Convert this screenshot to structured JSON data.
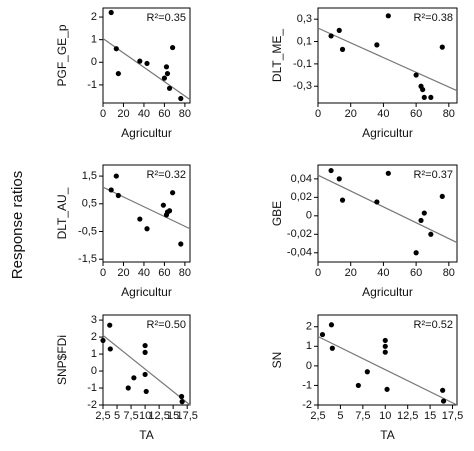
{
  "ylabel": "Response ratios",
  "chart_data": [
    {
      "type": "scatter",
      "xlabel": "Agricultur",
      "ylabel": "PGF_GE_p",
      "annotation": "R²=0.35",
      "x": [
        8,
        13,
        15,
        36,
        43,
        60,
        62,
        63,
        65,
        68,
        76
      ],
      "values": [
        2.2,
        0.6,
        -0.5,
        0.05,
        -0.05,
        -0.7,
        -0.2,
        -0.5,
        -1.15,
        0.65,
        -1.6
      ],
      "fit": {
        "x": [
          0,
          85
        ],
        "y": [
          1.05,
          -1.65
        ]
      },
      "xlim": [
        0,
        85
      ],
      "xticks": [
        0,
        20,
        40,
        60,
        80
      ],
      "ylim": [
        -1.8,
        2.4
      ],
      "yticks": [
        -1,
        0,
        1,
        2
      ],
      "color": "#000000",
      "line_color": "#777777"
    },
    {
      "type": "scatter",
      "xlabel": "Agricultur",
      "ylabel": "DLT_ME_",
      "annotation": "R²=0.38",
      "x": [
        8,
        13,
        15,
        36,
        43,
        60,
        63,
        64,
        65,
        69,
        76
      ],
      "values": [
        0.15,
        0.2,
        0.03,
        0.07,
        0.33,
        -0.2,
        -0.3,
        -0.33,
        -0.4,
        -0.4,
        0.05
      ],
      "fit": {
        "x": [
          0,
          85
        ],
        "y": [
          0.22,
          -0.34
        ]
      },
      "xlim": [
        0,
        85
      ],
      "xticks": [
        0,
        20,
        40,
        60,
        80
      ],
      "ylim": [
        -0.45,
        0.4
      ],
      "yticks": [
        {
          "value": -0.3,
          "label": "-0,3"
        },
        {
          "value": -0.1,
          "label": "-0,1"
        },
        {
          "value": 0.1,
          "label": "0,1"
        },
        {
          "value": 0.3,
          "label": "0,3"
        }
      ],
      "color": "#000000",
      "line_color": "#777777"
    },
    {
      "type": "scatter",
      "xlabel": "Agricultur",
      "ylabel": "DLT_AU_",
      "annotation": "R²=0.32",
      "x": [
        8,
        13,
        15,
        36,
        43,
        59,
        62,
        63,
        65,
        68,
        76
      ],
      "values": [
        1.0,
        1.5,
        0.8,
        -0.05,
        -0.4,
        0.45,
        0.1,
        0.2,
        0.25,
        0.9,
        -0.95
      ],
      "fit": {
        "x": [
          0,
          85
        ],
        "y": [
          1.1,
          -0.4
        ]
      },
      "xlim": [
        0,
        85
      ],
      "xticks": [
        0,
        20,
        40,
        60,
        80
      ],
      "ylim": [
        -1.6,
        1.9
      ],
      "yticks": [
        {
          "value": -1.5,
          "label": "-1,5"
        },
        {
          "value": -0.5,
          "label": "-0,5"
        },
        {
          "value": 0.5,
          "label": "0,5"
        },
        {
          "value": 1.5,
          "label": "1,5"
        }
      ],
      "color": "#000000",
      "line_color": "#777777"
    },
    {
      "type": "scatter",
      "xlabel": "Agricultur",
      "ylabel": "GBE",
      "annotation": "R²=0.37",
      "x": [
        8,
        13,
        15,
        36,
        43,
        60,
        63,
        65,
        69,
        76
      ],
      "values": [
        0.049,
        0.04,
        0.017,
        0.015,
        0.046,
        -0.04,
        -0.005,
        0.003,
        -0.02,
        0.021
      ],
      "fit": {
        "x": [
          0,
          85
        ],
        "y": [
          0.044,
          -0.029
        ]
      },
      "xlim": [
        0,
        85
      ],
      "xticks": [
        0,
        20,
        40,
        60,
        80
      ],
      "ylim": [
        -0.05,
        0.055
      ],
      "yticks": [
        {
          "value": -0.04,
          "label": "-0,04"
        },
        {
          "value": -0.02,
          "label": "-0,02"
        },
        0,
        {
          "value": 0.02,
          "label": "0,02"
        },
        {
          "value": 0.04,
          "label": "0,04"
        }
      ],
      "color": "#000000",
      "line_color": "#777777"
    },
    {
      "type": "scatter",
      "xlabel": "TA",
      "ylabel": "SNP$FDi",
      "annotation": "R²=0.50",
      "x": [
        2.5,
        3.7,
        3.8,
        7,
        8,
        10,
        10,
        10,
        10.2,
        16.5,
        16.6
      ],
      "values": [
        1.8,
        2.7,
        1.3,
        -1.0,
        -0.4,
        1.5,
        1.1,
        -0.2,
        -1.2,
        -1.5,
        -1.8
      ],
      "fit": {
        "x": [
          2.5,
          18
        ],
        "y": [
          2.1,
          -2.0
        ]
      },
      "xlim": [
        2.5,
        18
      ],
      "xticks": [
        {
          "value": 2.5,
          "label": "2,5"
        },
        5,
        {
          "value": 7.5,
          "label": "7,5"
        },
        10,
        {
          "value": 12.5,
          "label": "12,5"
        },
        15,
        {
          "value": 17.5,
          "label": "17,5"
        }
      ],
      "ylim": [
        -2,
        3.3
      ],
      "yticks": [
        -2,
        -1,
        0,
        1,
        2,
        3
      ],
      "color": "#000000",
      "line_color": "#777777"
    },
    {
      "type": "scatter",
      "xlabel": "TA",
      "ylabel": "SN",
      "annotation": "R²=0.52",
      "x": [
        3,
        4,
        4.1,
        7,
        8,
        10,
        10,
        10,
        10.2,
        16.4,
        16.5
      ],
      "values": [
        1.6,
        2.1,
        0.9,
        -1.0,
        -0.3,
        1.3,
        1.0,
        0.7,
        -1.2,
        -1.25,
        -1.8
      ],
      "fit": {
        "x": [
          2.5,
          18
        ],
        "y": [
          1.5,
          -2.0
        ]
      },
      "xlim": [
        2.5,
        18
      ],
      "xticks": [
        {
          "value": 2.5,
          "label": "2,5"
        },
        5,
        {
          "value": 7.5,
          "label": "7,5"
        },
        10,
        {
          "value": 12.5,
          "label": "12,5"
        },
        15,
        {
          "value": 17.5,
          "label": "17,5"
        }
      ],
      "ylim": [
        -2,
        2.6
      ],
      "yticks": [
        -2,
        -1,
        0,
        1,
        2
      ],
      "color": "#000000",
      "line_color": "#777777"
    }
  ]
}
